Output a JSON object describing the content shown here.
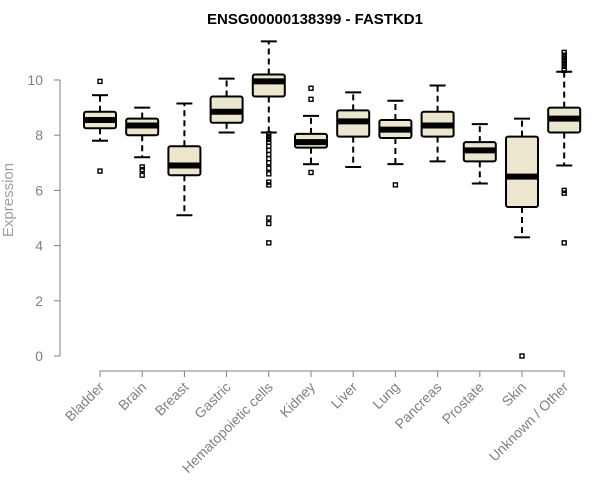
{
  "chart_data": {
    "type": "boxplot",
    "title": "ENSG00000138399 - FASTKD1",
    "xlabel": "",
    "ylabel": "Expression",
    "ylim": [
      0,
      11
    ],
    "yticks": [
      0,
      2,
      4,
      6,
      8,
      10
    ],
    "grid": false,
    "legend": "none",
    "colors": {
      "box_fill": "#EDE6CE",
      "line": "#000000",
      "axis": "#808080"
    },
    "categories": [
      "Bladder",
      "Brain",
      "Breast",
      "Gastric",
      "Hematopoietic cells",
      "Kidney",
      "Liver",
      "Lung",
      "Pancreas",
      "Prostate",
      "Skin",
      "Unknown / Other"
    ],
    "series": [
      {
        "category": "Bladder",
        "whisker_low": 7.8,
        "q1": 8.25,
        "median": 8.55,
        "q3": 8.85,
        "whisker_high": 9.45,
        "outliers": [
          9.95,
          6.7
        ]
      },
      {
        "category": "Brain",
        "whisker_low": 7.2,
        "q1": 8.0,
        "median": 8.35,
        "q3": 8.6,
        "whisker_high": 9.0,
        "outliers": [
          6.85,
          6.75,
          6.55
        ]
      },
      {
        "category": "Breast",
        "whisker_low": 5.1,
        "q1": 6.55,
        "median": 6.9,
        "q3": 7.6,
        "whisker_high": 9.15,
        "outliers": []
      },
      {
        "category": "Gastric",
        "whisker_low": 8.1,
        "q1": 8.45,
        "median": 8.85,
        "q3": 9.4,
        "whisker_high": 10.05,
        "outliers": []
      },
      {
        "category": "Hematopoietic cells",
        "whisker_low": 8.1,
        "q1": 9.4,
        "median": 9.95,
        "q3": 10.2,
        "whisker_high": 11.4,
        "outliers": [
          8.05,
          7.95,
          7.85,
          7.75,
          7.6,
          7.45,
          7.3,
          7.15,
          7.0,
          6.8,
          6.6,
          6.3,
          6.2,
          5.0,
          4.8,
          4.1
        ]
      },
      {
        "category": "Kidney",
        "whisker_low": 6.95,
        "q1": 7.55,
        "median": 7.75,
        "q3": 8.05,
        "whisker_high": 8.7,
        "outliers": [
          9.7,
          9.3,
          6.65
        ]
      },
      {
        "category": "Liver",
        "whisker_low": 6.85,
        "q1": 7.95,
        "median": 8.5,
        "q3": 8.9,
        "whisker_high": 9.55,
        "outliers": []
      },
      {
        "category": "Lung",
        "whisker_low": 6.95,
        "q1": 7.9,
        "median": 8.2,
        "q3": 8.55,
        "whisker_high": 9.25,
        "outliers": [
          6.2
        ]
      },
      {
        "category": "Pancreas",
        "whisker_low": 7.05,
        "q1": 7.95,
        "median": 8.35,
        "q3": 8.85,
        "whisker_high": 9.8,
        "outliers": []
      },
      {
        "category": "Prostate",
        "whisker_low": 6.25,
        "q1": 7.05,
        "median": 7.45,
        "q3": 7.75,
        "whisker_high": 8.4,
        "outliers": []
      },
      {
        "category": "Skin",
        "whisker_low": 4.3,
        "q1": 5.4,
        "median": 6.5,
        "q3": 7.95,
        "whisker_high": 8.6,
        "outliers": [
          0.0
        ]
      },
      {
        "category": "Unknown / Other",
        "whisker_low": 6.9,
        "q1": 8.1,
        "median": 8.6,
        "q3": 9.0,
        "whisker_high": 10.3,
        "outliers": [
          11.0,
          10.9,
          10.8,
          10.7,
          10.6,
          10.5,
          10.4,
          10.35,
          5.9,
          6.0,
          4.1
        ]
      }
    ]
  }
}
